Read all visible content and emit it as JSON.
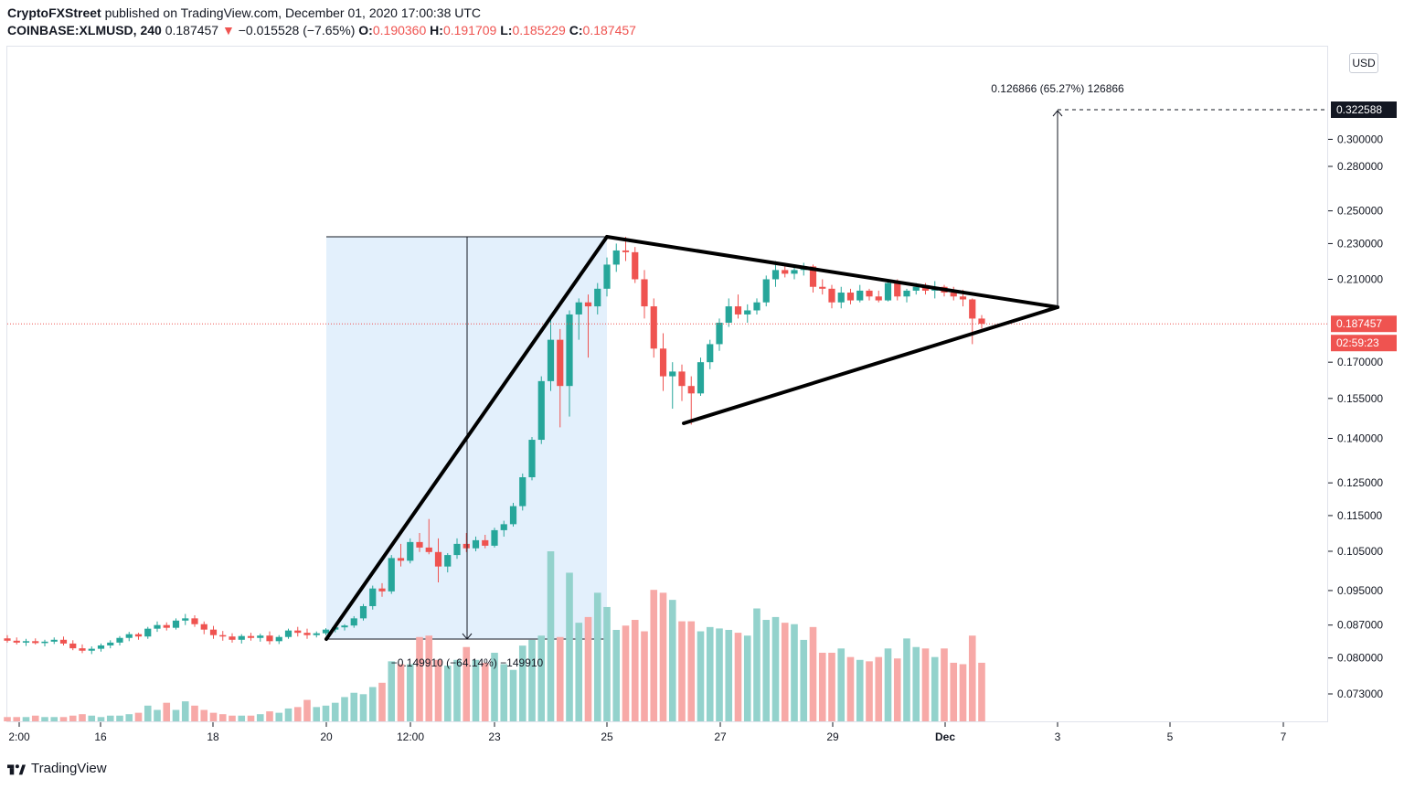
{
  "header": {
    "publisher": "CryptoFXStreet",
    "published_text": "published on TradingView.com, December 01, 2020 17:00:38 UTC",
    "symbol": "COINBASE:XLMUSD",
    "interval": "240",
    "last": "0.187457",
    "change_arrow": "▼",
    "change": "−0.015528 (−7.65%)",
    "o_label": "O:",
    "o_value": "0.190360",
    "h_label": "H:",
    "h_value": "0.191709",
    "l_label": "L:",
    "l_value": "0.185229",
    "c_label": "C:",
    "c_value": "0.187457"
  },
  "currency_button": "USD",
  "footer": {
    "brand": "TradingView"
  },
  "colors": {
    "up": "#26a69a",
    "down": "#ef5350",
    "vol_up": "#93d2cc",
    "vol_down": "#f7a9a7",
    "range_fill": "#e3f0fc"
  },
  "chart_data": {
    "type": "candlestick",
    "symbol": "COINBASE:XLMUSD",
    "interval": "240",
    "y_scale": "log",
    "y_ticks": [
      "0.300000",
      "0.280000",
      "0.250000",
      "0.230000",
      "0.210000",
      "0.170000",
      "0.155000",
      "0.140000",
      "0.125000",
      "0.115000",
      "0.105000",
      "0.095000",
      "0.087000",
      "0.080000",
      "0.073000"
    ],
    "x_ticks": [
      "2:00",
      "16",
      "18",
      "20",
      "12:00",
      "23",
      "25",
      "27",
      "29",
      "Dec",
      "3",
      "5",
      "7"
    ],
    "price_labels": {
      "last_price": "0.187457",
      "countdown": "02:59:23",
      "target": "0.322588"
    },
    "annotations": {
      "flagpole_measure": "−0.149910 (−64.14%) −149910",
      "projection_measure": "0.126866 (65.27%) 126866"
    },
    "pattern": "pennant",
    "candles": [
      [
        0.0841,
        0.0848,
        0.0832,
        0.0836
      ],
      [
        0.0836,
        0.0843,
        0.0828,
        0.0832
      ],
      [
        0.0832,
        0.084,
        0.0825,
        0.0835
      ],
      [
        0.0835,
        0.0841,
        0.0828,
        0.0831
      ],
      [
        0.0831,
        0.0838,
        0.0824,
        0.0834
      ],
      [
        0.0834,
        0.0843,
        0.0829,
        0.0838
      ],
      [
        0.0838,
        0.0845,
        0.0826,
        0.083
      ],
      [
        0.083,
        0.0837,
        0.0816,
        0.082
      ],
      [
        0.082,
        0.0828,
        0.081,
        0.0815
      ],
      [
        0.0815,
        0.0824,
        0.0808,
        0.0819
      ],
      [
        0.0819,
        0.083,
        0.0813,
        0.0826
      ],
      [
        0.0826,
        0.0837,
        0.082,
        0.0832
      ],
      [
        0.0832,
        0.0846,
        0.0826,
        0.0842
      ],
      [
        0.0842,
        0.0855,
        0.0835,
        0.085
      ],
      [
        0.085,
        0.0853,
        0.0838,
        0.0845
      ],
      [
        0.0845,
        0.0866,
        0.084,
        0.0862
      ],
      [
        0.0862,
        0.0878,
        0.0855,
        0.087
      ],
      [
        0.087,
        0.0876,
        0.0858,
        0.0864
      ],
      [
        0.0864,
        0.0885,
        0.086,
        0.088
      ],
      [
        0.088,
        0.0895,
        0.087,
        0.0885
      ],
      [
        0.0885,
        0.0892,
        0.0866,
        0.0872
      ],
      [
        0.0872,
        0.0878,
        0.085,
        0.086
      ],
      [
        0.086,
        0.0868,
        0.084,
        0.0848
      ],
      [
        0.0848,
        0.0857,
        0.0836,
        0.0845
      ],
      [
        0.0845,
        0.0852,
        0.0832,
        0.0838
      ],
      [
        0.0838,
        0.085,
        0.083,
        0.0846
      ],
      [
        0.0846,
        0.0853,
        0.0836,
        0.0842
      ],
      [
        0.0842,
        0.0851,
        0.0834,
        0.0847
      ],
      [
        0.0847,
        0.0856,
        0.0828,
        0.0835
      ],
      [
        0.0835,
        0.0848,
        0.0829,
        0.0844
      ],
      [
        0.0844,
        0.0862,
        0.084,
        0.0858
      ],
      [
        0.0858,
        0.0866,
        0.0845,
        0.0853
      ],
      [
        0.0853,
        0.0862,
        0.084,
        0.0848
      ],
      [
        0.0848,
        0.0856,
        0.0843,
        0.0852
      ],
      [
        0.0852,
        0.0863,
        0.0848,
        0.086
      ],
      [
        0.086,
        0.087,
        0.0854,
        0.0865
      ],
      [
        0.0865,
        0.0872,
        0.0858,
        0.0869
      ],
      [
        0.0869,
        0.089,
        0.0864,
        0.0885
      ],
      [
        0.0885,
        0.0918,
        0.088,
        0.0913
      ],
      [
        0.0913,
        0.0962,
        0.0905,
        0.0955
      ],
      [
        0.0955,
        0.0968,
        0.0935,
        0.0948
      ],
      [
        0.0948,
        0.104,
        0.0942,
        0.1032
      ],
      [
        0.1032,
        0.107,
        0.101,
        0.1025
      ],
      [
        0.1025,
        0.1085,
        0.1018,
        0.1075
      ],
      [
        0.1075,
        0.11,
        0.1048,
        0.106
      ],
      [
        0.106,
        0.114,
        0.1042,
        0.1048
      ],
      [
        0.1048,
        0.1085,
        0.097,
        0.101
      ],
      [
        0.101,
        0.1045,
        0.0995,
        0.104
      ],
      [
        0.104,
        0.1085,
        0.103,
        0.107
      ],
      [
        0.107,
        0.11,
        0.1048,
        0.1058
      ],
      [
        0.1058,
        0.109,
        0.105,
        0.108
      ],
      [
        0.108,
        0.1095,
        0.1058,
        0.1065
      ],
      [
        0.1065,
        0.1115,
        0.106,
        0.1108
      ],
      [
        0.1108,
        0.1135,
        0.109,
        0.1125
      ],
      [
        0.1125,
        0.1188,
        0.1118,
        0.1178
      ],
      [
        0.1178,
        0.128,
        0.1165,
        0.1268
      ],
      [
        0.1268,
        0.1405,
        0.1258,
        0.1395
      ],
      [
        0.1395,
        0.164,
        0.138,
        0.162
      ],
      [
        0.162,
        0.19,
        0.158,
        0.18
      ],
      [
        0.18,
        0.185,
        0.144,
        0.16
      ],
      [
        0.16,
        0.194,
        0.148,
        0.192
      ],
      [
        0.192,
        0.2,
        0.18,
        0.198
      ],
      [
        0.198,
        0.202,
        0.172,
        0.196
      ],
      [
        0.196,
        0.208,
        0.192,
        0.205
      ],
      [
        0.205,
        0.222,
        0.201,
        0.218
      ],
      [
        0.218,
        0.23,
        0.214,
        0.226
      ],
      [
        0.226,
        0.234,
        0.22,
        0.225
      ],
      [
        0.225,
        0.228,
        0.208,
        0.21
      ],
      [
        0.21,
        0.215,
        0.19,
        0.196
      ],
      [
        0.196,
        0.2,
        0.172,
        0.176
      ],
      [
        0.176,
        0.183,
        0.158,
        0.164
      ],
      [
        0.164,
        0.17,
        0.151,
        0.166
      ],
      [
        0.166,
        0.169,
        0.154,
        0.16
      ],
      [
        0.16,
        0.164,
        0.145,
        0.157
      ],
      [
        0.157,
        0.172,
        0.156,
        0.17
      ],
      [
        0.17,
        0.18,
        0.167,
        0.178
      ],
      [
        0.178,
        0.19,
        0.175,
        0.188
      ],
      [
        0.188,
        0.2,
        0.186,
        0.196
      ],
      [
        0.196,
        0.202,
        0.19,
        0.192
      ],
      [
        0.192,
        0.197,
        0.188,
        0.194
      ],
      [
        0.194,
        0.2,
        0.192,
        0.198
      ],
      [
        0.198,
        0.212,
        0.196,
        0.21
      ],
      [
        0.21,
        0.22,
        0.206,
        0.215
      ],
      [
        0.215,
        0.218,
        0.211,
        0.213
      ],
      [
        0.213,
        0.217,
        0.21,
        0.215
      ],
      [
        0.215,
        0.219,
        0.212,
        0.217
      ],
      [
        0.217,
        0.218,
        0.203,
        0.206
      ],
      [
        0.206,
        0.21,
        0.202,
        0.205
      ],
      [
        0.205,
        0.207,
        0.195,
        0.198
      ],
      [
        0.198,
        0.206,
        0.195,
        0.203
      ],
      [
        0.203,
        0.205,
        0.197,
        0.199
      ],
      [
        0.199,
        0.207,
        0.198,
        0.204
      ],
      [
        0.204,
        0.205,
        0.199,
        0.201
      ],
      [
        0.201,
        0.204,
        0.198,
        0.199
      ],
      [
        0.199,
        0.21,
        0.1985,
        0.208
      ],
      [
        0.208,
        0.21,
        0.199,
        0.201
      ],
      [
        0.201,
        0.205,
        0.198,
        0.204
      ],
      [
        0.204,
        0.208,
        0.202,
        0.206
      ],
      [
        0.206,
        0.208,
        0.202,
        0.204
      ],
      [
        0.204,
        0.209,
        0.2,
        0.206
      ],
      [
        0.206,
        0.207,
        0.201,
        0.203
      ],
      [
        0.203,
        0.206,
        0.199,
        0.201
      ],
      [
        0.201,
        0.2045,
        0.196,
        0.1995
      ],
      [
        0.1995,
        0.2,
        0.178,
        0.19
      ],
      [
        0.19,
        0.1917,
        0.1852,
        0.1875
      ]
    ],
    "volumes": [
      3,
      3,
      3,
      4,
      3,
      3,
      3,
      4,
      5,
      4,
      3,
      4,
      4,
      5,
      6,
      11,
      8,
      13,
      8,
      14,
      11,
      8,
      6,
      5,
      4,
      4,
      4,
      5,
      7,
      6,
      9,
      10,
      15,
      10,
      11,
      13,
      17,
      20,
      19,
      24,
      27,
      42,
      40,
      40,
      59,
      60,
      43,
      39,
      43,
      52,
      43,
      41,
      48,
      40,
      36,
      53,
      57,
      60,
      119,
      59,
      104,
      69,
      73,
      90,
      80,
      64,
      67,
      71,
      63,
      92,
      90,
      85,
      70,
      70,
      63,
      66,
      65,
      64,
      62,
      60,
      79,
      71,
      73,
      69,
      68,
      57,
      66,
      48,
      48,
      51,
      45,
      43,
      42,
      45,
      51,
      44,
      58,
      52,
      51,
      45,
      51,
      41,
      40,
      60,
      41
    ],
    "volume_colors": "green when close >= open, red otherwise"
  }
}
